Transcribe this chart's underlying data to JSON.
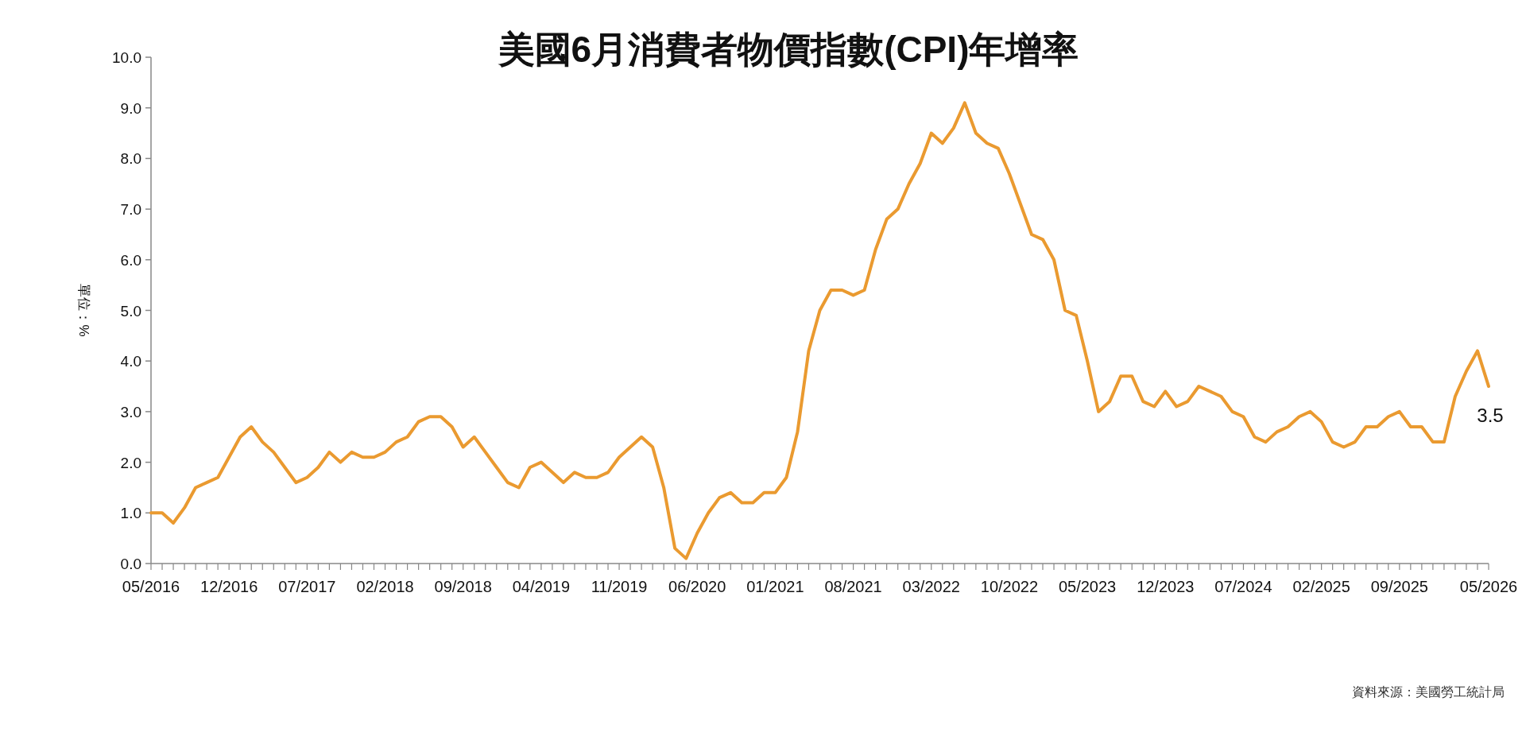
{
  "chart_data": {
    "type": "line",
    "title": "美國6月消費者物價指數(CPI)年增率",
    "ylabel": "單位：%",
    "annotations": [
      "資料來源：美國勞工統計局"
    ],
    "categories": [
      "05/2016",
      null,
      null,
      null,
      null,
      null,
      null,
      "12/2016",
      null,
      null,
      null,
      null,
      null,
      null,
      "07/2017",
      null,
      null,
      null,
      null,
      null,
      null,
      "02/2018",
      null,
      null,
      null,
      null,
      null,
      null,
      "09/2018",
      null,
      null,
      null,
      null,
      null,
      null,
      "04/2019",
      null,
      null,
      null,
      null,
      null,
      null,
      "11/2019",
      null,
      null,
      null,
      null,
      null,
      null,
      "06/2020",
      null,
      null,
      null,
      null,
      null,
      null,
      "01/2021",
      null,
      null,
      null,
      null,
      null,
      null,
      "08/2021",
      null,
      null,
      null,
      null,
      null,
      null,
      "03/2022",
      null,
      null,
      null,
      null,
      null,
      null,
      "10/2022",
      null,
      null,
      null,
      null,
      null,
      null,
      "05/2023",
      null,
      null,
      null,
      null,
      null,
      null,
      "12/2023",
      null,
      null,
      null,
      null,
      null,
      null,
      "07/2024",
      null,
      null,
      null,
      null,
      null,
      null,
      "02/2025",
      null,
      null,
      null,
      null,
      null,
      null,
      "09/2025",
      null,
      null,
      null,
      null,
      null,
      null,
      null,
      "05/2026"
    ],
    "series": [
      {
        "color": "#ea9a30",
        "values": [
          1.0,
          1.0,
          0.8,
          1.1,
          1.5,
          1.6,
          1.7,
          2.1,
          2.5,
          2.7,
          2.4,
          2.2,
          1.9,
          1.6,
          1.7,
          1.9,
          2.2,
          2.0,
          2.2,
          2.1,
          2.1,
          2.2,
          2.4,
          2.5,
          2.8,
          2.9,
          2.9,
          2.7,
          2.3,
          2.5,
          2.2,
          1.9,
          1.6,
          1.5,
          1.9,
          2.0,
          1.8,
          1.6,
          1.8,
          1.7,
          1.7,
          1.8,
          2.1,
          2.3,
          2.5,
          2.3,
          1.5,
          0.3,
          0.1,
          0.6,
          1.0,
          1.3,
          1.4,
          1.2,
          1.2,
          1.4,
          1.4,
          1.7,
          2.6,
          4.2,
          5.0,
          5.4,
          5.4,
          5.3,
          5.4,
          6.2,
          6.8,
          7.0,
          7.5,
          7.9,
          8.5,
          8.3,
          8.6,
          9.1,
          8.5,
          8.3,
          8.2,
          7.7,
          7.1,
          6.5,
          6.4,
          6.0,
          5.0,
          4.9,
          4.0,
          3.0,
          3.2,
          3.7,
          3.7,
          3.2,
          3.1,
          3.4,
          3.1,
          3.2,
          3.5,
          3.4,
          3.3,
          3.0,
          2.9,
          2.5,
          2.4,
          2.6,
          2.7,
          2.9,
          3.0,
          2.8,
          2.4,
          2.3,
          2.4,
          2.7,
          2.7,
          2.9,
          3.0,
          2.7,
          2.7,
          2.4,
          2.4,
          3.3,
          3.8,
          4.2,
          3.5
        ],
        "value_labels": [
          null,
          null,
          null,
          null,
          null,
          null,
          null,
          null,
          null,
          null,
          null,
          null,
          null,
          null,
          null,
          null,
          null,
          null,
          null,
          null,
          null,
          null,
          null,
          null,
          null,
          null,
          null,
          null,
          null,
          null,
          null,
          null,
          null,
          null,
          null,
          null,
          null,
          null,
          null,
          null,
          null,
          null,
          null,
          null,
          null,
          null,
          null,
          null,
          null,
          null,
          null,
          null,
          null,
          null,
          null,
          null,
          null,
          null,
          null,
          null,
          null,
          null,
          null,
          null,
          null,
          null,
          null,
          null,
          null,
          null,
          null,
          null,
          null,
          null,
          null,
          null,
          null,
          null,
          null,
          null,
          null,
          null,
          null,
          null,
          null,
          null,
          null,
          null,
          null,
          null,
          null,
          null,
          null,
          null,
          null,
          null,
          null,
          null,
          null,
          null,
          null,
          null,
          null,
          null,
          null,
          null,
          null,
          null,
          null,
          null,
          null,
          null,
          null,
          null,
          null,
          null,
          null,
          null,
          null,
          null,
          "3.5"
        ]
      }
    ],
    "ylim": [
      0,
      10
    ],
    "yticks": [
      {
        "value": 0,
        "label": "0.0"
      },
      {
        "value": 1,
        "label": "1.0"
      },
      {
        "value": 2,
        "label": "2.0"
      },
      {
        "value": 3,
        "label": "3.0"
      },
      {
        "value": 4,
        "label": "4.0"
      },
      {
        "value": 5,
        "label": "5.0"
      },
      {
        "value": 6,
        "label": "6.0"
      },
      {
        "value": 7,
        "label": "7.0"
      },
      {
        "value": 8,
        "label": "8.0"
      },
      {
        "value": 9,
        "label": "9.0"
      },
      {
        "value": 10,
        "label": "10.0"
      }
    ],
    "marker": "none",
    "line_style": "solid"
  }
}
